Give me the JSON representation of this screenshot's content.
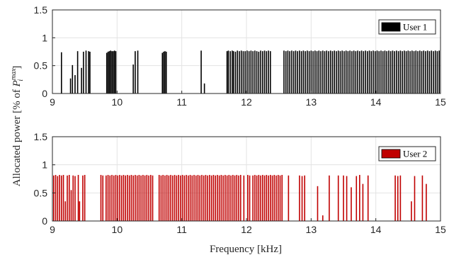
{
  "figure": {
    "xlabel": "Frequency [kHz]",
    "ylabel_main": "Allocated power [% of ",
    "ylabel_sym": "P",
    "ylabel_sub": "i",
    "ylabel_sup": "max",
    "ylabel_close": "]"
  },
  "chart_data": [
    {
      "type": "bar",
      "legend": "User 1",
      "legend_placement": "top-right",
      "color": "#000000",
      "xlim": [
        9,
        15
      ],
      "ylim": [
        0,
        1.5
      ],
      "xticks": [
        9,
        10,
        11,
        12,
        13,
        14,
        15
      ],
      "yticks": [
        0,
        0.5,
        1,
        1.5
      ],
      "grid": true,
      "bars": [
        [
          9.14,
          0.74
        ],
        [
          9.28,
          0.27
        ],
        [
          9.31,
          0.51
        ],
        [
          9.35,
          0.33
        ],
        [
          9.39,
          0.76
        ],
        [
          9.45,
          0.46
        ],
        [
          9.48,
          0.75
        ],
        [
          9.52,
          0.77
        ],
        [
          9.56,
          0.76
        ],
        [
          9.58,
          0.75
        ],
        [
          9.84,
          0.73
        ],
        [
          9.86,
          0.75
        ],
        [
          9.88,
          0.76
        ],
        [
          9.9,
          0.77
        ],
        [
          9.92,
          0.76
        ],
        [
          9.94,
          0.76
        ],
        [
          9.96,
          0.77
        ],
        [
          9.98,
          0.76
        ],
        [
          10.25,
          0.52
        ],
        [
          10.28,
          0.76
        ],
        [
          10.32,
          0.77
        ],
        [
          10.7,
          0.73
        ],
        [
          10.72,
          0.75
        ],
        [
          10.74,
          0.76
        ],
        [
          10.76,
          0.75
        ],
        [
          11.3,
          0.77
        ],
        [
          11.35,
          0.18
        ],
        [
          11.7,
          0.76
        ],
        [
          11.72,
          0.77
        ],
        [
          11.75,
          0.76
        ],
        [
          11.78,
          0.77
        ],
        [
          11.8,
          0.76
        ],
        [
          11.83,
          0.75
        ],
        [
          11.86,
          0.77
        ],
        [
          11.89,
          0.76
        ],
        [
          11.92,
          0.77
        ],
        [
          11.95,
          0.76
        ],
        [
          11.98,
          0.76
        ],
        [
          12.01,
          0.77
        ],
        [
          12.04,
          0.76
        ],
        [
          12.07,
          0.77
        ],
        [
          12.1,
          0.76
        ],
        [
          12.13,
          0.77
        ],
        [
          12.16,
          0.76
        ],
        [
          12.19,
          0.75
        ],
        [
          12.22,
          0.77
        ],
        [
          12.25,
          0.76
        ],
        [
          12.28,
          0.77
        ],
        [
          12.31,
          0.76
        ],
        [
          12.34,
          0.77
        ],
        [
          12.37,
          0.76
        ],
        [
          12.58,
          0.77
        ],
        [
          12.61,
          0.76
        ],
        [
          12.64,
          0.77
        ],
        [
          12.67,
          0.76
        ],
        [
          12.7,
          0.77
        ],
        [
          12.73,
          0.76
        ],
        [
          12.76,
          0.77
        ],
        [
          12.79,
          0.76
        ],
        [
          12.82,
          0.77
        ],
        [
          12.85,
          0.76
        ],
        [
          12.88,
          0.77
        ],
        [
          12.91,
          0.76
        ],
        [
          12.94,
          0.77
        ],
        [
          12.97,
          0.76
        ],
        [
          13.0,
          0.77
        ],
        [
          13.03,
          0.76
        ],
        [
          13.06,
          0.77
        ],
        [
          13.09,
          0.76
        ],
        [
          13.12,
          0.77
        ],
        [
          13.15,
          0.76
        ],
        [
          13.18,
          0.77
        ],
        [
          13.21,
          0.76
        ],
        [
          13.24,
          0.77
        ],
        [
          13.27,
          0.76
        ],
        [
          13.3,
          0.77
        ],
        [
          13.33,
          0.76
        ],
        [
          13.36,
          0.77
        ],
        [
          13.39,
          0.76
        ],
        [
          13.42,
          0.77
        ],
        [
          13.45,
          0.76
        ],
        [
          13.48,
          0.77
        ],
        [
          13.51,
          0.76
        ],
        [
          13.54,
          0.77
        ],
        [
          13.57,
          0.76
        ],
        [
          13.6,
          0.77
        ],
        [
          13.63,
          0.76
        ],
        [
          13.66,
          0.77
        ],
        [
          13.69,
          0.76
        ],
        [
          13.72,
          0.77
        ],
        [
          13.75,
          0.76
        ],
        [
          13.78,
          0.77
        ],
        [
          13.81,
          0.76
        ],
        [
          13.84,
          0.77
        ],
        [
          13.87,
          0.76
        ],
        [
          13.9,
          0.77
        ],
        [
          13.93,
          0.76
        ],
        [
          13.96,
          0.77
        ],
        [
          13.99,
          0.76
        ],
        [
          14.02,
          0.77
        ],
        [
          14.05,
          0.76
        ],
        [
          14.08,
          0.77
        ],
        [
          14.11,
          0.76
        ],
        [
          14.14,
          0.77
        ],
        [
          14.17,
          0.76
        ],
        [
          14.2,
          0.77
        ],
        [
          14.23,
          0.76
        ],
        [
          14.26,
          0.77
        ],
        [
          14.29,
          0.76
        ],
        [
          14.32,
          0.77
        ],
        [
          14.35,
          0.76
        ],
        [
          14.38,
          0.77
        ],
        [
          14.41,
          0.76
        ],
        [
          14.44,
          0.77
        ],
        [
          14.47,
          0.76
        ],
        [
          14.5,
          0.77
        ],
        [
          14.53,
          0.76
        ],
        [
          14.56,
          0.77
        ],
        [
          14.59,
          0.76
        ],
        [
          14.62,
          0.77
        ],
        [
          14.65,
          0.76
        ],
        [
          14.68,
          0.77
        ],
        [
          14.71,
          0.76
        ],
        [
          14.74,
          0.77
        ],
        [
          14.77,
          0.76
        ],
        [
          14.8,
          0.77
        ],
        [
          14.83,
          0.76
        ],
        [
          14.86,
          0.77
        ],
        [
          14.89,
          0.76
        ],
        [
          14.92,
          0.77
        ],
        [
          14.95,
          0.76
        ],
        [
          14.98,
          0.77
        ]
      ]
    },
    {
      "type": "bar",
      "legend": "User 2",
      "legend_placement": "top-right",
      "color": "#c00000",
      "xlim": [
        9,
        15
      ],
      "ylim": [
        0,
        1.5
      ],
      "xticks": [
        9,
        10,
        11,
        12,
        13,
        14,
        15
      ],
      "yticks": [
        0,
        0.5,
        1,
        1.5
      ],
      "grid": true,
      "bars": [
        [
          9.02,
          0.81
        ],
        [
          9.05,
          0.82
        ],
        [
          9.08,
          0.8
        ],
        [
          9.11,
          0.82
        ],
        [
          9.14,
          0.81
        ],
        [
          9.17,
          0.82
        ],
        [
          9.2,
          0.35
        ],
        [
          9.23,
          0.81
        ],
        [
          9.26,
          0.82
        ],
        [
          9.29,
          0.55
        ],
        [
          9.32,
          0.81
        ],
        [
          9.35,
          0.8
        ],
        [
          9.4,
          0.82
        ],
        [
          9.42,
          0.35
        ],
        [
          9.47,
          0.81
        ],
        [
          9.5,
          0.82
        ],
        [
          9.75,
          0.82
        ],
        [
          9.78,
          0.81
        ],
        [
          9.83,
          0.81
        ],
        [
          9.86,
          0.82
        ],
        [
          9.89,
          0.81
        ],
        [
          9.92,
          0.82
        ],
        [
          9.95,
          0.81
        ],
        [
          9.98,
          0.82
        ],
        [
          10.01,
          0.81
        ],
        [
          10.04,
          0.82
        ],
        [
          10.07,
          0.81
        ],
        [
          10.1,
          0.82
        ],
        [
          10.13,
          0.81
        ],
        [
          10.16,
          0.82
        ],
        [
          10.19,
          0.81
        ],
        [
          10.22,
          0.82
        ],
        [
          10.25,
          0.81
        ],
        [
          10.28,
          0.82
        ],
        [
          10.31,
          0.81
        ],
        [
          10.34,
          0.82
        ],
        [
          10.37,
          0.81
        ],
        [
          10.4,
          0.82
        ],
        [
          10.43,
          0.81
        ],
        [
          10.46,
          0.82
        ],
        [
          10.49,
          0.81
        ],
        [
          10.52,
          0.82
        ],
        [
          10.55,
          0.81
        ],
        [
          10.65,
          0.82
        ],
        [
          10.68,
          0.81
        ],
        [
          10.71,
          0.82
        ],
        [
          10.74,
          0.81
        ],
        [
          10.77,
          0.82
        ],
        [
          10.8,
          0.81
        ],
        [
          10.83,
          0.82
        ],
        [
          10.86,
          0.81
        ],
        [
          10.89,
          0.82
        ],
        [
          10.92,
          0.81
        ],
        [
          10.95,
          0.82
        ],
        [
          10.98,
          0.81
        ],
        [
          11.01,
          0.82
        ],
        [
          11.04,
          0.81
        ],
        [
          11.07,
          0.82
        ],
        [
          11.1,
          0.81
        ],
        [
          11.13,
          0.82
        ],
        [
          11.16,
          0.81
        ],
        [
          11.19,
          0.82
        ],
        [
          11.22,
          0.81
        ],
        [
          11.25,
          0.82
        ],
        [
          11.28,
          0.81
        ],
        [
          11.31,
          0.82
        ],
        [
          11.34,
          0.81
        ],
        [
          11.37,
          0.82
        ],
        [
          11.4,
          0.81
        ],
        [
          11.43,
          0.82
        ],
        [
          11.46,
          0.81
        ],
        [
          11.49,
          0.82
        ],
        [
          11.52,
          0.81
        ],
        [
          11.55,
          0.82
        ],
        [
          11.58,
          0.81
        ],
        [
          11.61,
          0.82
        ],
        [
          11.64,
          0.81
        ],
        [
          11.67,
          0.82
        ],
        [
          11.7,
          0.81
        ],
        [
          11.73,
          0.82
        ],
        [
          11.76,
          0.81
        ],
        [
          11.79,
          0.82
        ],
        [
          11.82,
          0.81
        ],
        [
          11.85,
          0.82
        ],
        [
          11.88,
          0.81
        ],
        [
          11.91,
          0.82
        ],
        [
          11.96,
          0.81
        ],
        [
          12.02,
          0.82
        ],
        [
          12.05,
          0.81
        ],
        [
          12.1,
          0.81
        ],
        [
          12.13,
          0.82
        ],
        [
          12.16,
          0.81
        ],
        [
          12.19,
          0.82
        ],
        [
          12.22,
          0.81
        ],
        [
          12.25,
          0.82
        ],
        [
          12.28,
          0.81
        ],
        [
          12.31,
          0.82
        ],
        [
          12.34,
          0.81
        ],
        [
          12.37,
          0.82
        ],
        [
          12.4,
          0.81
        ],
        [
          12.43,
          0.82
        ],
        [
          12.46,
          0.81
        ],
        [
          12.49,
          0.82
        ],
        [
          12.52,
          0.81
        ],
        [
          12.55,
          0.82
        ],
        [
          12.65,
          0.81
        ],
        [
          12.82,
          0.81
        ],
        [
          12.86,
          0.8
        ],
        [
          12.9,
          0.81
        ],
        [
          13.1,
          0.62
        ],
        [
          13.18,
          0.1
        ],
        [
          13.28,
          0.81
        ],
        [
          13.42,
          0.81
        ],
        [
          13.5,
          0.81
        ],
        [
          13.55,
          0.8
        ],
        [
          13.62,
          0.6
        ],
        [
          13.7,
          0.8
        ],
        [
          13.75,
          0.82
        ],
        [
          13.8,
          0.66
        ],
        [
          13.88,
          0.81
        ],
        [
          14.3,
          0.81
        ],
        [
          14.34,
          0.8
        ],
        [
          14.38,
          0.81
        ],
        [
          14.55,
          0.35
        ],
        [
          14.6,
          0.8
        ],
        [
          14.72,
          0.81
        ],
        [
          14.78,
          0.66
        ]
      ]
    }
  ]
}
